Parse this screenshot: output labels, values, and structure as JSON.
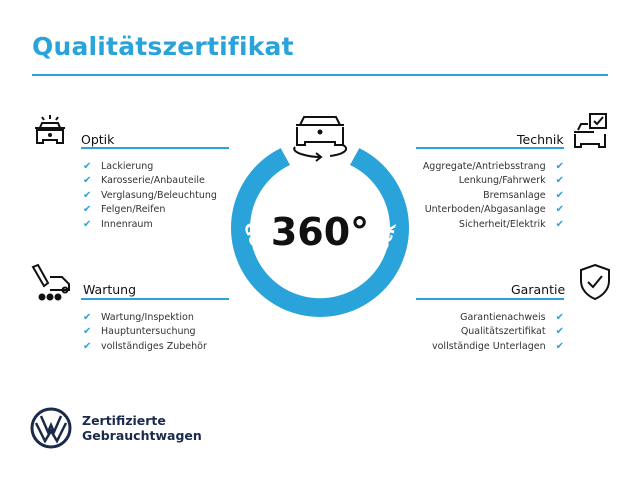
{
  "title": "Qualitätszertifikat",
  "accent": "#29a3d9",
  "center": {
    "big": "360°",
    "ring_text": "Gebrauchtwagen-Check"
  },
  "sections": {
    "optik": {
      "title": "Optik",
      "items": [
        "Lackierung",
        "Karosserie/Anbauteile",
        "Verglasung/Beleuchtung",
        "Felgen/Reifen",
        "Innenraum"
      ]
    },
    "wartung": {
      "title": "Wartung",
      "items": [
        "Wartung/Inspektion",
        "Hauptuntersuchung",
        "vollständiges Zubehör"
      ]
    },
    "technik": {
      "title": "Technik",
      "items": [
        "Aggregate/Antriebsstrang",
        "Lenkung/Fahrwerk",
        "Bremsanlage",
        "Unterboden/Abgasanlage",
        "Sicherheit/Elektrik"
      ]
    },
    "garantie": {
      "title": "Garantie",
      "items": [
        "Garantienachweis",
        "Qualitätszertifikat",
        "vollständige Unterlagen"
      ]
    }
  },
  "check": "✔",
  "brand": {
    "line1": "Zertifizierte",
    "line2": "Gebrauchtwagen",
    "logo": "VW"
  }
}
